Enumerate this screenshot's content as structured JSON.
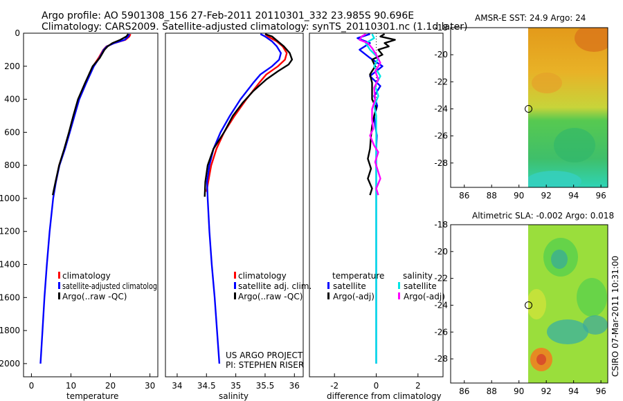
{
  "header": {
    "line1": "Argo profile: AO 5901308_156 27-Feb-2011 20110301_332 23.985S 90.696E",
    "line2": "Climatology: CARS2009. Satellite-adjusted climatology: synTS_20110301.nc (1.1d later)"
  },
  "credit": {
    "project": "US ARGO PROJECT",
    "pi": "PI: STEPHEN RISER"
  },
  "side_stamp": "CSIRO 07-Mar-2011 10:31:00",
  "colors": {
    "climatology": "#ff0000",
    "satellite": "#0000ff",
    "argo": "#000000",
    "sat_salinity": "#00e5e5",
    "argo_salinity": "#ff00ff"
  },
  "chart_data": [
    {
      "type": "line",
      "xlabel": "temperature",
      "ylabel": "depth",
      "xlim": [
        -2,
        32
      ],
      "ylim": [
        0,
        2080
      ],
      "y_inverted": true,
      "x_ticks": [
        0,
        10,
        20,
        30
      ],
      "y_ticks": [
        0,
        200,
        400,
        600,
        800,
        1000,
        1200,
        1400,
        1600,
        1800,
        2000
      ],
      "legend": [
        "climatology",
        "satellite-adjusted climatolog",
        "Argo(..raw -QC)"
      ],
      "series": [
        {
          "name": "climatology",
          "color": "#ff0000",
          "depth": [
            5,
            20,
            40,
            60,
            80,
            100,
            150,
            200,
            300,
            400,
            500,
            600,
            700,
            800,
            900,
            960
          ],
          "values": [
            25.1,
            24.8,
            23.8,
            21.0,
            19.0,
            18.2,
            17.0,
            15.6,
            13.8,
            12.0,
            10.8,
            9.6,
            8.4,
            7.0,
            6.2,
            5.6
          ]
        },
        {
          "name": "satellite-adjusted climatology",
          "color": "#0000ff",
          "depth": [
            5,
            20,
            40,
            60,
            80,
            100,
            150,
            200,
            300,
            400,
            500,
            600,
            700,
            800,
            900,
            1000,
            1200,
            1400,
            1600,
            1800,
            2000
          ],
          "values": [
            24.8,
            24.5,
            23.6,
            21.0,
            19.1,
            18.3,
            17.2,
            15.8,
            13.9,
            12.1,
            10.9,
            9.7,
            8.5,
            7.1,
            6.2,
            5.5,
            4.6,
            3.9,
            3.3,
            2.8,
            2.3
          ]
        },
        {
          "name": "Argo(..raw -QC)",
          "color": "#000000",
          "depth": [
            5,
            20,
            40,
            60,
            80,
            100,
            150,
            200,
            300,
            400,
            500,
            600,
            700,
            800,
            900,
            980
          ],
          "values": [
            24.5,
            24.0,
            22.5,
            20.5,
            19.3,
            18.5,
            17.3,
            15.5,
            13.6,
            11.8,
            10.6,
            9.5,
            8.3,
            7.0,
            6.1,
            5.4
          ]
        }
      ]
    },
    {
      "type": "line",
      "xlabel": "salinity",
      "xlim": [
        33.8,
        36.15
      ],
      "ylim": [
        0,
        2080
      ],
      "y_inverted": true,
      "x_ticks": [
        34,
        34.5,
        35,
        35.5,
        36
      ],
      "legend": [
        "climatology",
        "satellite adj. clim.",
        "Argo(..raw -QC)"
      ],
      "series": [
        {
          "name": "climatology",
          "color": "#ff0000",
          "depth": [
            5,
            20,
            50,
            80,
            120,
            160,
            200,
            250,
            300,
            400,
            500,
            600,
            700,
            800,
            900,
            960
          ],
          "values": [
            35.5,
            35.55,
            35.7,
            35.8,
            35.87,
            35.84,
            35.72,
            35.52,
            35.4,
            35.18,
            34.98,
            34.8,
            34.67,
            34.58,
            34.53,
            34.5
          ]
        },
        {
          "name": "satellite adj. clim.",
          "color": "#0000ff",
          "depth": [
            5,
            20,
            50,
            80,
            120,
            160,
            200,
            250,
            300,
            400,
            500,
            600,
            700,
            800,
            900,
            1000,
            1200,
            1400,
            1600,
            1800,
            2000
          ],
          "values": [
            35.42,
            35.5,
            35.62,
            35.7,
            35.77,
            35.74,
            35.62,
            35.42,
            35.3,
            35.08,
            34.9,
            34.74,
            34.62,
            34.55,
            34.51,
            34.52,
            34.55,
            34.59,
            34.64,
            34.68,
            34.72
          ]
        },
        {
          "name": "Argo(..raw -QC)",
          "color": "#000000",
          "depth": [
            5,
            20,
            50,
            80,
            120,
            160,
            190,
            230,
            280,
            350,
            420,
            500,
            600,
            700,
            800,
            900,
            990
          ],
          "values": [
            35.5,
            35.62,
            35.72,
            35.82,
            35.92,
            35.96,
            35.9,
            35.72,
            35.52,
            35.3,
            35.12,
            34.95,
            34.8,
            34.62,
            34.52,
            34.48,
            34.47
          ]
        }
      ]
    },
    {
      "type": "line",
      "xlabel": "difference from climatology",
      "xlim": [
        -3.2,
        3.2
      ],
      "ylim": [
        0,
        2080
      ],
      "y_inverted": true,
      "x_ticks": [
        -2,
        0,
        2
      ],
      "legend_groups": [
        {
          "title": "temperature",
          "items": [
            "satellite",
            "Argo(-adj)"
          ]
        },
        {
          "title": "salinity",
          "items": [
            "satellite",
            "Argo(-adj)"
          ]
        }
      ],
      "series": [
        {
          "name": "temperature satellite",
          "color": "#0000ff",
          "depth": [
            5,
            30,
            60,
            100,
            150,
            200,
            260,
            320,
            380,
            440,
            500,
            560,
            620,
            700,
            800,
            900,
            1000,
            1200,
            1400,
            1600,
            1800,
            2000
          ],
          "values": [
            -0.3,
            -0.9,
            -0.3,
            -0.8,
            -0.3,
            0.3,
            -0.3,
            0.2,
            -0.1,
            0.05,
            -0.1,
            -0.05,
            0.03,
            0.0,
            0.0,
            0.0,
            0.0,
            0.0,
            0.0,
            0.0,
            0.0,
            0.0
          ]
        },
        {
          "name": "temperature Argo(-adj)",
          "color": "#000000",
          "depth": [
            5,
            20,
            40,
            60,
            80,
            100,
            130,
            160,
            200,
            250,
            300,
            350,
            400,
            450,
            500,
            560,
            620,
            700,
            760,
            820,
            880,
            940,
            980
          ],
          "values": [
            0.4,
            0.2,
            0.9,
            0.4,
            0.6,
            0.1,
            0.3,
            -0.2,
            -0.05,
            -0.3,
            -0.2,
            -0.2,
            -0.2,
            0.0,
            -0.1,
            -0.2,
            -0.25,
            -0.3,
            -0.4,
            -0.25,
            -0.4,
            -0.2,
            -0.3
          ]
        },
        {
          "name": "salinity satellite",
          "color": "#00e5e5",
          "depth": [
            5,
            30,
            60,
            100,
            150,
            200,
            260,
            320,
            380,
            440,
            500,
            600,
            800,
            1000,
            1200,
            1400,
            1600,
            1800,
            2000
          ],
          "values": [
            -0.2,
            -0.1,
            -0.5,
            -0.3,
            0.1,
            -0.1,
            0.2,
            -0.05,
            0.1,
            -0.1,
            0.0,
            0.0,
            0.0,
            0.0,
            0.0,
            0.0,
            0.0,
            0.0,
            0.0
          ]
        },
        {
          "name": "salinity Argo(-adj)",
          "color": "#ff00ff",
          "depth": [
            5,
            20,
            40,
            60,
            90,
            130,
            180,
            230,
            280,
            330,
            400,
            460,
            520,
            580,
            620,
            680,
            720,
            780,
            840,
            880,
            940,
            980
          ],
          "values": [
            -0.5,
            -0.7,
            -0.8,
            -0.4,
            -0.2,
            0.0,
            0.2,
            -0.05,
            0.1,
            -0.1,
            -0.05,
            -0.2,
            -0.2,
            -0.15,
            -0.3,
            -0.1,
            0.1,
            -0.05,
            0.1,
            0.2,
            0.0,
            0.1
          ]
        }
      ]
    },
    {
      "type": "heatmap",
      "title": "AMSR-E SST: 24.9 Argo: 24",
      "x_ticks": [
        86,
        88,
        90,
        92,
        94,
        96
      ],
      "y_ticks": [
        -18,
        -20,
        -22,
        -24,
        -26,
        -28
      ],
      "xlim": [
        85,
        96.5
      ],
      "ylim": [
        -29.8,
        -18
      ],
      "data_xlim": [
        90,
        96.5
      ],
      "marker": {
        "lon": 90.7,
        "lat": -24.0
      }
    },
    {
      "type": "heatmap",
      "title": "Altimetric SLA: -0.002 Argo: 0.018",
      "x_ticks": [
        86,
        88,
        90,
        92,
        94,
        96
      ],
      "y_ticks": [
        -18,
        -20,
        -22,
        -24,
        -26,
        -28
      ],
      "xlim": [
        85,
        96.5
      ],
      "ylim": [
        -29.8,
        -18
      ],
      "data_xlim": [
        90,
        96.5
      ],
      "marker": {
        "lon": 90.7,
        "lat": -24.0
      }
    }
  ]
}
